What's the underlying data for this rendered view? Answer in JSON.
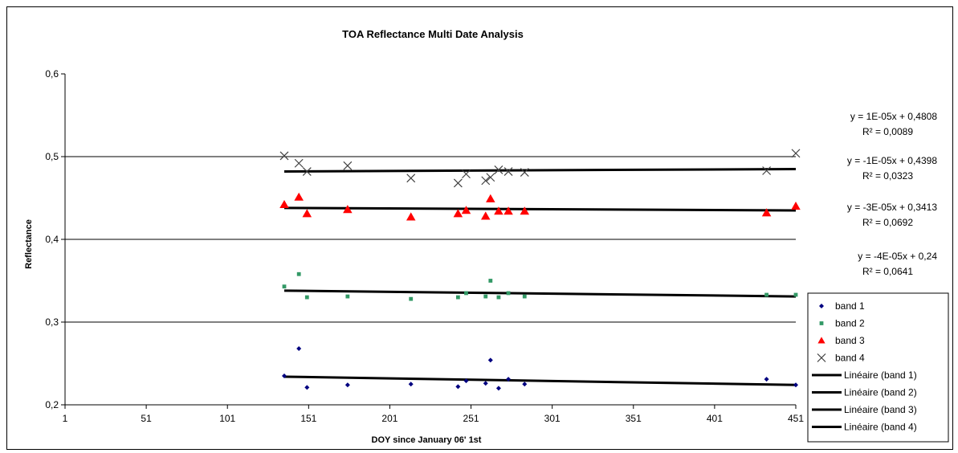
{
  "chart_data": {
    "type": "scatter",
    "title": "TOA Reflectance Multi Date Analysis",
    "xlabel": "DOY since January 06' 1st",
    "ylabel": "Reflectance",
    "xlim": [
      1,
      451
    ],
    "ylim": [
      0.2,
      0.6
    ],
    "x_ticks": [
      "1",
      "51",
      "101",
      "151",
      "201",
      "251",
      "301",
      "351",
      "401",
      "451"
    ],
    "y_ticks": [
      "0,2",
      "0,3",
      "0,4",
      "0,5",
      "0,6"
    ],
    "gridlines": "horizontal",
    "legend_position": "right",
    "series": [
      {
        "name": "band 1",
        "marker": "diamond",
        "color": "#000080",
        "x": [
          136,
          145,
          150,
          175,
          214,
          243,
          248,
          260,
          263,
          268,
          274,
          284,
          433,
          451
        ],
        "y": [
          0.235,
          0.268,
          0.221,
          0.224,
          0.225,
          0.222,
          0.229,
          0.226,
          0.254,
          0.22,
          0.231,
          0.225,
          0.231,
          0.224
        ]
      },
      {
        "name": "band 2",
        "marker": "square",
        "color": "#339966",
        "x": [
          136,
          145,
          150,
          175,
          214,
          243,
          248,
          260,
          263,
          268,
          274,
          284,
          433,
          451
        ],
        "y": [
          0.343,
          0.358,
          0.33,
          0.331,
          0.328,
          0.33,
          0.335,
          0.331,
          0.35,
          0.33,
          0.335,
          0.331,
          0.333,
          0.333
        ]
      },
      {
        "name": "band 3",
        "marker": "triangle",
        "color": "#ff0000",
        "x": [
          136,
          145,
          150,
          175,
          214,
          243,
          248,
          260,
          263,
          268,
          274,
          284,
          433,
          451
        ],
        "y": [
          0.442,
          0.451,
          0.431,
          0.436,
          0.427,
          0.431,
          0.435,
          0.428,
          0.449,
          0.434,
          0.434,
          0.434,
          0.432,
          0.44
        ]
      },
      {
        "name": "band 4",
        "marker": "x",
        "color": "#404040",
        "x": [
          136,
          145,
          150,
          175,
          214,
          243,
          248,
          260,
          263,
          268,
          274,
          284,
          433,
          451
        ],
        "y": [
          0.501,
          0.492,
          0.482,
          0.489,
          0.474,
          0.468,
          0.479,
          0.471,
          0.475,
          0.484,
          0.482,
          0.481,
          0.483,
          0.504
        ]
      }
    ],
    "trendlines": [
      {
        "name": "Linéaire (band 1)",
        "of": "band 1",
        "equation": "y = -4E-05x + 0,24",
        "r2": "R² = 0,0641",
        "x_range": [
          136,
          451
        ],
        "y_range": [
          0.234,
          0.224
        ]
      },
      {
        "name": "Linéaire (band 2)",
        "of": "band 2",
        "equation": "y = -3E-05x + 0,3413",
        "r2": "R² = 0,0692",
        "x_range": [
          136,
          451
        ],
        "y_range": [
          0.338,
          0.331
        ]
      },
      {
        "name": "Linéaire (band 3)",
        "of": "band 3",
        "equation": "y = -1E-05x + 0,4398",
        "r2": "R² = 0,0323",
        "x_range": [
          136,
          451
        ],
        "y_range": [
          0.438,
          0.435
        ]
      },
      {
        "name": "Linéaire (band 4)",
        "of": "band 4",
        "equation": "y = 1E-05x + 0,4808",
        "r2": "R² = 0,0089",
        "x_range": [
          136,
          451
        ],
        "y_range": [
          0.482,
          0.485
        ]
      }
    ],
    "equation_order": [
      "band 4",
      "band 3",
      "band 2",
      "band 1"
    ],
    "legend_order": [
      "band 1",
      "band 2",
      "band 3",
      "band 4",
      "Linéaire (band 1)",
      "Linéaire (band 2)",
      "Linéaire (band 3)",
      "Linéaire (band 4)"
    ]
  }
}
